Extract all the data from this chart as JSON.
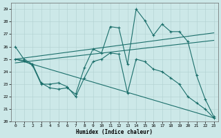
{
  "xlabel": "Humidex (Indice chaleur)",
  "xlim": [
    -0.5,
    23.5
  ],
  "ylim": [
    20,
    29.5
  ],
  "yticks": [
    20,
    21,
    22,
    23,
    24,
    25,
    26,
    27,
    28,
    29
  ],
  "xticks": [
    0,
    1,
    2,
    3,
    4,
    5,
    6,
    7,
    8,
    9,
    10,
    11,
    12,
    13,
    14,
    15,
    16,
    17,
    18,
    19,
    20,
    21,
    22,
    23
  ],
  "bg_color": "#cce8e8",
  "line_color": "#1a6e6a",
  "jagged_x": [
    0,
    1,
    2,
    3,
    4,
    5,
    6,
    7,
    8,
    9,
    10,
    11,
    12,
    13,
    14,
    15,
    16,
    17,
    18,
    19,
    20,
    21,
    22,
    23
  ],
  "jagged_y": [
    26.0,
    25.0,
    24.6,
    23.1,
    22.7,
    22.6,
    22.7,
    22.2,
    24.3,
    25.8,
    25.5,
    27.6,
    27.5,
    24.6,
    29.0,
    28.1,
    26.9,
    27.8,
    27.2,
    27.2,
    26.4,
    23.7,
    21.8,
    20.4
  ],
  "trend1_x": [
    0,
    23
  ],
  "trend1_y": [
    25.0,
    27.1
  ],
  "trend2_x": [
    0,
    23
  ],
  "trend2_y": [
    24.7,
    26.5
  ],
  "lower_x": [
    0,
    1,
    2,
    3,
    4,
    5,
    6,
    7,
    8,
    9,
    10,
    11,
    12,
    13,
    14,
    15,
    16,
    17,
    18,
    19,
    20,
    21,
    22,
    23
  ],
  "lower_y": [
    25.0,
    24.9,
    24.5,
    23.0,
    23.0,
    23.1,
    22.8,
    22.0,
    23.5,
    24.8,
    25.0,
    25.5,
    25.4,
    22.3,
    25.0,
    24.8,
    24.2,
    24.0,
    23.5,
    23.0,
    22.0,
    21.5,
    21.0,
    20.3
  ],
  "low_trend_x": [
    0,
    23
  ],
  "low_trend_y": [
    25.0,
    20.3
  ]
}
